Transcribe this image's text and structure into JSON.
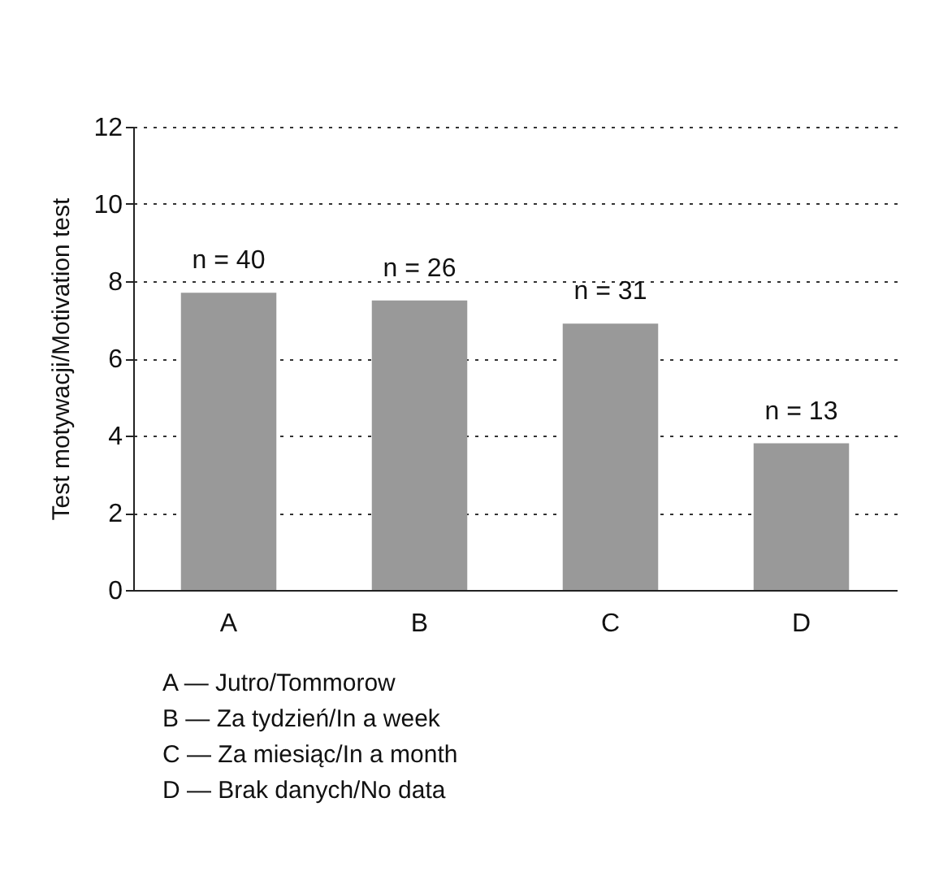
{
  "chart_data": {
    "type": "bar",
    "ylabel": "Test motywacji/Motivation test",
    "categories": [
      "A",
      "B",
      "C",
      "D"
    ],
    "values": [
      7.7,
      7.5,
      6.9,
      3.8
    ],
    "color": "#999999",
    "ylim": [
      0,
      12
    ],
    "yticks": [
      0,
      2,
      4,
      6,
      8,
      10,
      12
    ],
    "grid": "y",
    "annotations": [
      {
        "text": "n = 40",
        "x": "A",
        "y": 7.7
      },
      {
        "text": "n = 26",
        "x": "B",
        "y": 7.5
      },
      {
        "text": "n = 31",
        "x": "C",
        "y": 6.9
      },
      {
        "text": "n = 13",
        "x": "D",
        "y": 3.8
      },
      "A — Jutro/Tommorow",
      "B — Za tydzień/In a week",
      "C — Za miesiąc/In a month",
      "D — Brak danych/No data"
    ]
  }
}
